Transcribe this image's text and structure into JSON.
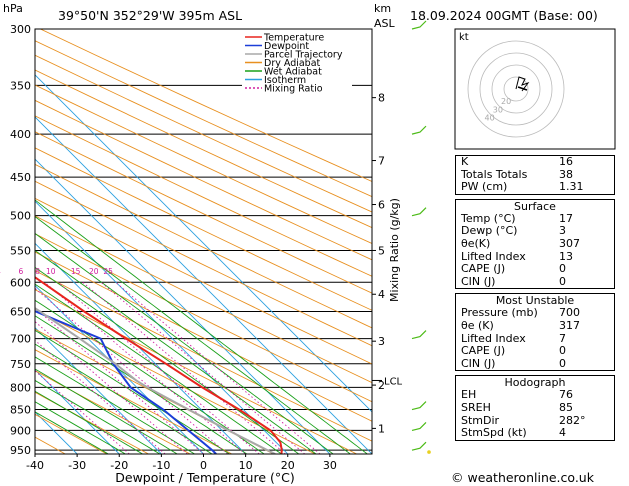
{
  "header": {
    "hpa_unit": "hPa",
    "location": "39°50'N  352°29'W  395m  ASL",
    "km_unit": "km",
    "asl_unit": "ASL",
    "datetime": "18.09.2024  00GMT  (Base: 00)"
  },
  "legend": [
    {
      "label": "Temperature",
      "color": "#e8251e",
      "dash": ""
    },
    {
      "label": "Dewpoint",
      "color": "#1c3ed8",
      "dash": ""
    },
    {
      "label": "Parcel Trajectory",
      "color": "#a8a8a8",
      "dash": ""
    },
    {
      "label": "Dry Adiabat",
      "color": "#e89020",
      "dash": ""
    },
    {
      "label": "Wet Adiabat",
      "color": "#1aa01a",
      "dash": ""
    },
    {
      "label": "Isotherm",
      "color": "#2aa0e0",
      "dash": ""
    },
    {
      "label": "Mixing Ratio",
      "color": "#d020a0",
      "dash": "2,2"
    }
  ],
  "chart_data": {
    "type": "line",
    "title": "",
    "xlabel": "Dewpoint / Temperature (°C)",
    "ylabel_left": "hPa",
    "ylabel_right": "Mixing Ratio (g/kg)",
    "xlim": [
      -40,
      40
    ],
    "pressure_levels": [
      300,
      350,
      400,
      450,
      500,
      550,
      600,
      650,
      700,
      750,
      800,
      850,
      900,
      950
    ],
    "x_ticks": [
      -40,
      -30,
      -20,
      -10,
      0,
      10,
      20,
      30
    ],
    "km_ticks": [
      {
        "label": "8",
        "p": 362
      },
      {
        "label": "7",
        "p": 430
      },
      {
        "label": "6",
        "p": 485
      },
      {
        "label": "5",
        "p": 550
      },
      {
        "label": "4",
        "p": 620
      },
      {
        "label": "3",
        "p": 705
      },
      {
        "label": "2",
        "p": 795
      },
      {
        "label": "1",
        "p": 895
      }
    ],
    "lcl": {
      "label": "LCL",
      "p": 785
    },
    "mixing_ratio_labels": [
      "1",
      "2",
      "3",
      "4",
      "6",
      "8",
      "10",
      "15",
      "20",
      "25"
    ],
    "mixing_ratio_label_p": 590,
    "series": [
      {
        "name": "Temperature",
        "color": "#e8251e",
        "points": [
          [
            960,
            18.5
          ],
          [
            950,
            19.5
          ],
          [
            930,
            21.0
          ],
          [
            900,
            21.5
          ],
          [
            850,
            19.0
          ],
          [
            800,
            15.5
          ],
          [
            750,
            12.5
          ],
          [
            700,
            9.0
          ],
          [
            650,
            5.5
          ],
          [
            600,
            2.5
          ],
          [
            550,
            -1.0
          ],
          [
            500,
            -5.5
          ],
          [
            450,
            -11.0
          ],
          [
            400,
            -18.0
          ],
          [
            350,
            -26.5
          ],
          [
            300,
            -36.0
          ]
        ]
      },
      {
        "name": "Dewpoint",
        "color": "#1c3ed8",
        "points": [
          [
            960,
            3.0
          ],
          [
            950,
            3.0
          ],
          [
            900,
            2.0
          ],
          [
            850,
            1.0
          ],
          [
            800,
            -1.5
          ],
          [
            750,
            0.0
          ],
          [
            700,
            3.0
          ],
          [
            650,
            -6.0
          ],
          [
            600,
            -26.5
          ],
          [
            550,
            -27.0
          ],
          [
            500,
            -10.0
          ],
          [
            450,
            2.5
          ],
          [
            400,
            -4.0
          ],
          [
            350,
            -12.0
          ],
          [
            300,
            -24.0
          ]
        ]
      },
      {
        "name": "Parcel Trajectory",
        "color": "#a8a8a8",
        "points": [
          [
            960,
            17.0
          ],
          [
            900,
            11.5
          ],
          [
            850,
            7.0
          ],
          [
            800,
            2.5
          ],
          [
            785,
            1.5
          ],
          [
            750,
            0.5
          ],
          [
            700,
            -2.0
          ],
          [
            650,
            -5.0
          ],
          [
            600,
            -8.5
          ],
          [
            550,
            -12.5
          ],
          [
            500,
            -17.0
          ],
          [
            450,
            -22.5
          ],
          [
            400,
            -28.5
          ],
          [
            350,
            -35.5
          ],
          [
            300,
            -44.0
          ]
        ]
      }
    ],
    "wind_barbs_p": [
      300,
      400,
      500,
      700,
      850,
      900,
      950
    ]
  },
  "hodograph": {
    "unit": "kt",
    "ring_labels": [
      "40",
      "30",
      "20"
    ]
  },
  "indices": {
    "rows": [
      {
        "label": "K",
        "value": "16"
      },
      {
        "label": "Totals Totals",
        "value": "38"
      },
      {
        "label": "PW (cm)",
        "value": "1.31"
      }
    ]
  },
  "surface": {
    "title": "Surface",
    "rows": [
      {
        "label": "Temp (°C)",
        "value": "17"
      },
      {
        "label": "Dewp (°C)",
        "value": "3"
      },
      {
        "label": "θe(K)",
        "value": "307"
      },
      {
        "label": "Lifted Index",
        "value": "13"
      },
      {
        "label": "CAPE (J)",
        "value": "0"
      },
      {
        "label": "CIN (J)",
        "value": "0"
      }
    ]
  },
  "most_unstable": {
    "title": "Most Unstable",
    "rows": [
      {
        "label": "Pressure (mb)",
        "value": "700"
      },
      {
        "label": "θe (K)",
        "value": "317"
      },
      {
        "label": "Lifted Index",
        "value": "7"
      },
      {
        "label": "CAPE (J)",
        "value": "0"
      },
      {
        "label": "CIN (J)",
        "value": "0"
      }
    ]
  },
  "hodograph_table": {
    "title": "Hodograph",
    "rows": [
      {
        "label": "EH",
        "value": "76"
      },
      {
        "label": "SREH",
        "value": "85"
      },
      {
        "label": "StmDir",
        "value": "282°"
      },
      {
        "label": "StmSpd (kt)",
        "value": "4"
      }
    ]
  },
  "footer": {
    "copyright": "© weatheronline.co.uk"
  }
}
